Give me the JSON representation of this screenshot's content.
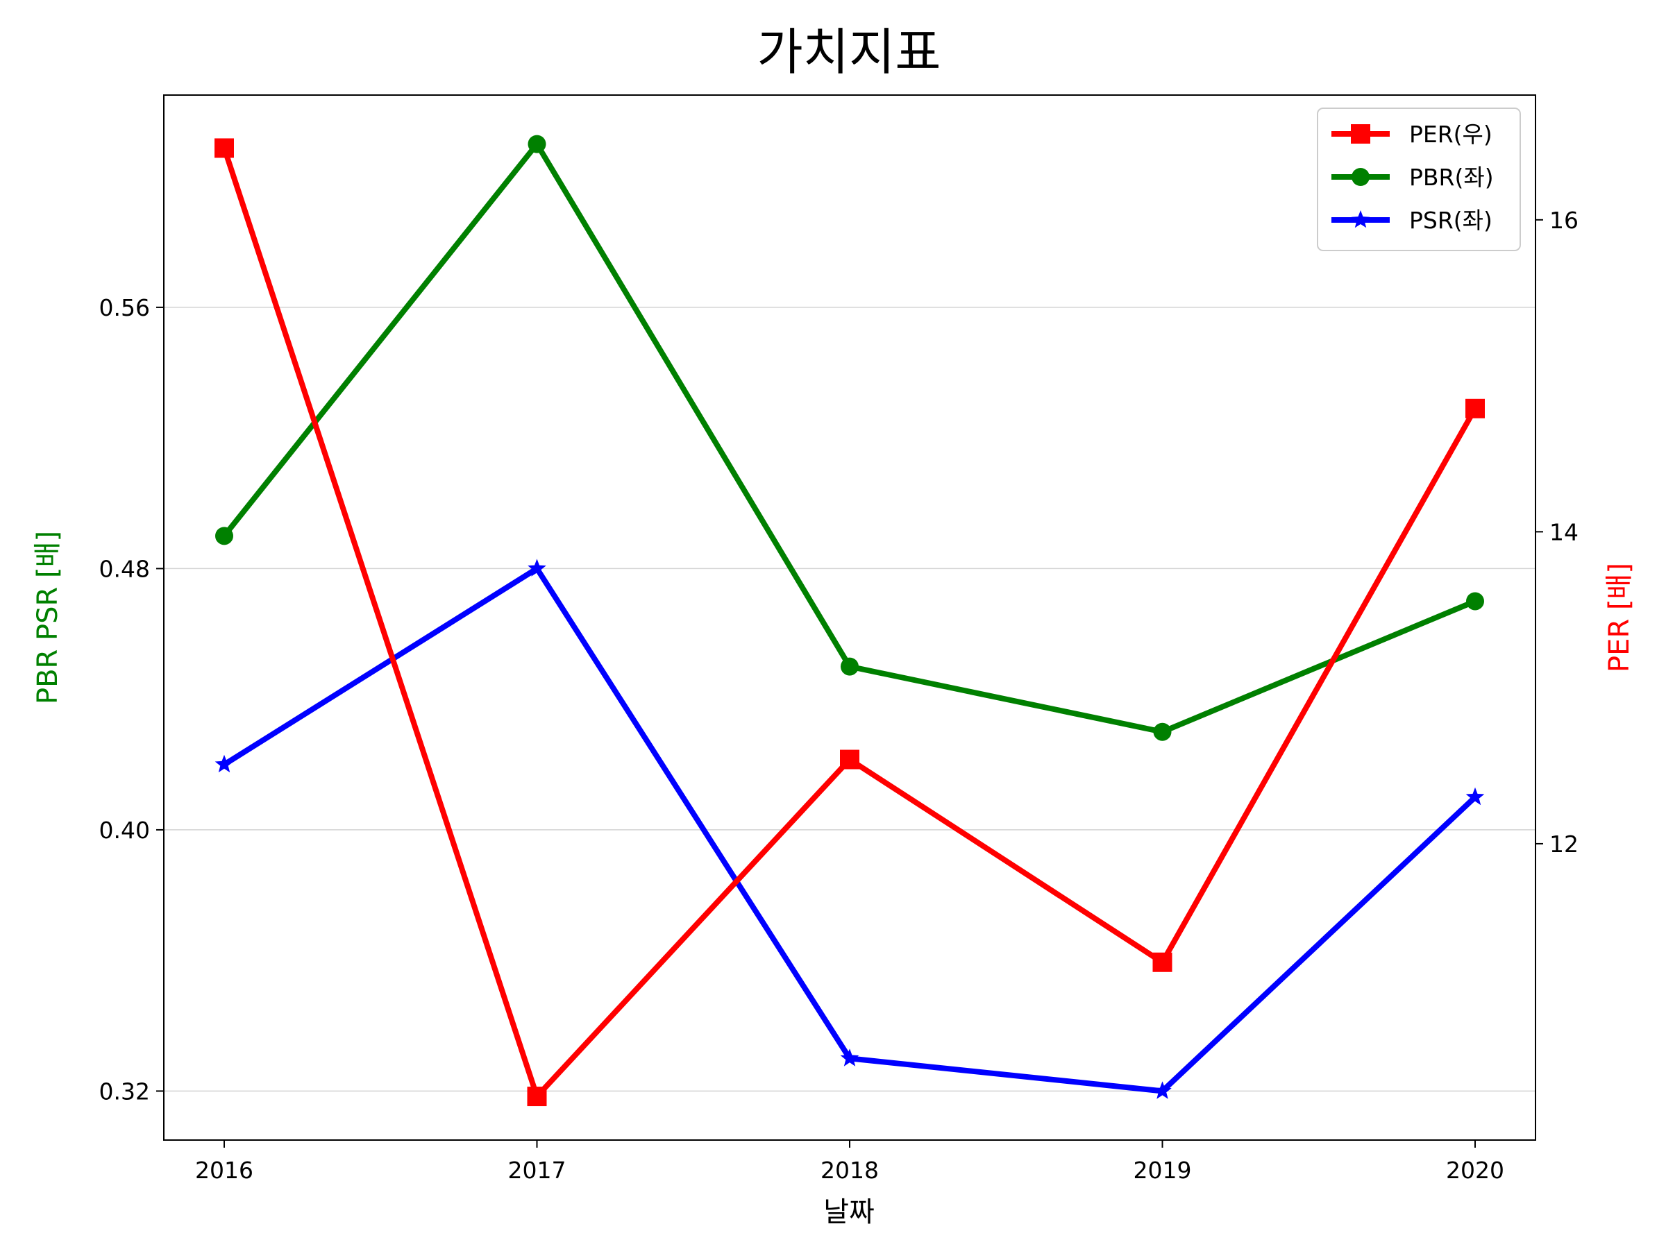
{
  "chart_data": {
    "type": "line",
    "title": "가치지표",
    "xlabel": "날짜",
    "ylabel_left": "PBR PSR [배]",
    "ylabel_right": "PER [배]",
    "categories": [
      "2016",
      "2017",
      "2018",
      "2019",
      "2020"
    ],
    "y_left": {
      "range": [
        0.305,
        0.625
      ],
      "ticks": [
        0.32,
        0.4,
        0.48,
        0.56
      ],
      "tick_labels": [
        "0.32",
        "0.40",
        "0.48",
        "0.56"
      ],
      "grid": true
    },
    "y_right": {
      "range": [
        10.1,
        16.8
      ],
      "ticks": [
        12,
        14,
        16
      ],
      "tick_labels": [
        "12",
        "14",
        "16"
      ]
    },
    "legend": {
      "position": "top-right"
    },
    "series": [
      {
        "name": "PER(우)",
        "axis": "right",
        "marker": "square",
        "color": "#ff0000",
        "values": [
          16.46,
          10.38,
          12.54,
          11.24,
          14.79
        ]
      },
      {
        "name": "PBR(좌)",
        "axis": "left",
        "marker": "circle",
        "color": "#008000",
        "values": [
          0.49,
          0.61,
          0.45,
          0.43,
          0.47
        ]
      },
      {
        "name": "PSR(좌)",
        "axis": "left",
        "marker": "star",
        "color": "#0000ff",
        "values": [
          0.42,
          0.48,
          0.33,
          0.32,
          0.41
        ]
      }
    ]
  }
}
